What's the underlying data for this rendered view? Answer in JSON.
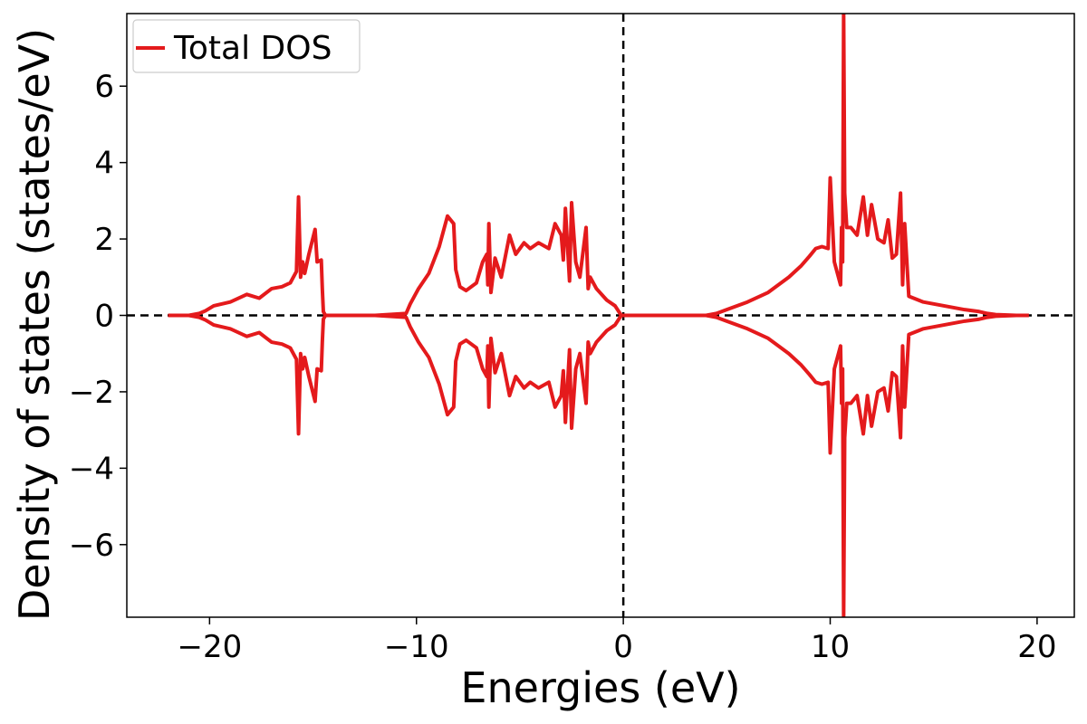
{
  "chart_data": {
    "type": "line",
    "xlabel": "Energies (eV)",
    "ylabel": "Density of states (states/eV)",
    "xlim": [
      -24.0,
      21.8
    ],
    "ylim": [
      -7.9,
      7.9
    ],
    "xticks": [
      -20,
      -10,
      0,
      10,
      20
    ],
    "xtick_labels": [
      "−20",
      "−10",
      "0",
      "10",
      "20"
    ],
    "yticks": [
      -6,
      -4,
      -2,
      0,
      2,
      4,
      6
    ],
    "ytick_labels": [
      "−6",
      "−4",
      "−2",
      "0",
      "2",
      "4",
      "6"
    ],
    "grid": false,
    "legend": {
      "placement": "top-left",
      "entries": [
        "Total DOS"
      ]
    },
    "reference_lines": [
      {
        "orientation": "vertical",
        "value": 0,
        "style": "dashed",
        "color": "#000000"
      },
      {
        "orientation": "horizontal",
        "value": 0,
        "style": "dashed",
        "color": "#000000"
      }
    ],
    "series": [
      {
        "name": "Total DOS",
        "color": "#e41a1c",
        "mirrored_negative": true,
        "x": [
          -22.0,
          -21.0,
          -20.5,
          -20.2,
          -19.8,
          -19.0,
          -18.2,
          -17.6,
          -17.0,
          -16.5,
          -16.1,
          -15.8,
          -15.7,
          -15.6,
          -15.5,
          -15.4,
          -15.2,
          -14.9,
          -14.8,
          -14.6,
          -14.55,
          -14.5,
          -14.4,
          -14.0,
          -12.0,
          -10.5,
          -10.3,
          -9.9,
          -9.4,
          -8.9,
          -8.5,
          -8.2,
          -8.1,
          -7.9,
          -7.6,
          -7.1,
          -6.8,
          -6.6,
          -6.55,
          -6.5,
          -6.4,
          -6.2,
          -5.9,
          -5.5,
          -5.2,
          -4.8,
          -4.5,
          -4.1,
          -3.6,
          -3.3,
          -3.0,
          -2.9,
          -2.8,
          -2.6,
          -2.5,
          -2.3,
          -2.1,
          -1.8,
          -1.7,
          -1.6,
          -1.3,
          -0.8,
          -0.4,
          -0.1,
          0.0,
          1.0,
          2.0,
          3.0,
          4.0,
          4.5,
          5.0,
          6.0,
          7.0,
          8.0,
          8.6,
          9.0,
          9.3,
          9.6,
          9.9,
          10.0,
          10.2,
          10.4,
          10.5,
          10.55,
          10.6,
          10.65,
          10.7,
          10.8,
          11.0,
          11.3,
          11.6,
          11.8,
          12.0,
          12.3,
          12.6,
          12.8,
          13.0,
          13.2,
          13.4,
          13.5,
          13.6,
          13.8,
          14.5,
          15.5,
          16.5,
          17.2,
          17.6,
          18.0,
          19.0,
          19.6
        ],
        "values": [
          0.0,
          0.0,
          0.05,
          0.12,
          0.25,
          0.35,
          0.55,
          0.45,
          0.7,
          0.75,
          0.85,
          1.15,
          3.1,
          1.0,
          1.4,
          1.1,
          1.6,
          2.25,
          1.4,
          1.45,
          0.7,
          0.1,
          0.0,
          0.0,
          0.0,
          0.05,
          0.3,
          0.7,
          1.1,
          1.8,
          2.6,
          2.4,
          1.2,
          0.75,
          0.65,
          0.85,
          1.4,
          1.6,
          0.8,
          2.4,
          0.6,
          1.5,
          1.0,
          2.1,
          1.6,
          1.9,
          1.75,
          1.9,
          1.75,
          2.4,
          2.1,
          1.45,
          2.8,
          0.9,
          2.95,
          1.4,
          1.0,
          2.3,
          0.7,
          1.0,
          0.7,
          0.4,
          0.25,
          0.0,
          0.0,
          0.0,
          0.0,
          0.0,
          0.0,
          0.05,
          0.15,
          0.35,
          0.6,
          1.0,
          1.3,
          1.55,
          1.75,
          1.8,
          1.75,
          3.6,
          1.4,
          1.0,
          0.8,
          2.3,
          1.4,
          7.9,
          3.2,
          2.3,
          2.3,
          2.1,
          3.1,
          2.1,
          2.9,
          2.0,
          1.9,
          2.5,
          1.5,
          1.6,
          3.2,
          0.8,
          2.4,
          0.5,
          0.35,
          0.25,
          0.15,
          0.1,
          0.05,
          0.02,
          0.0,
          0.0
        ]
      }
    ]
  }
}
